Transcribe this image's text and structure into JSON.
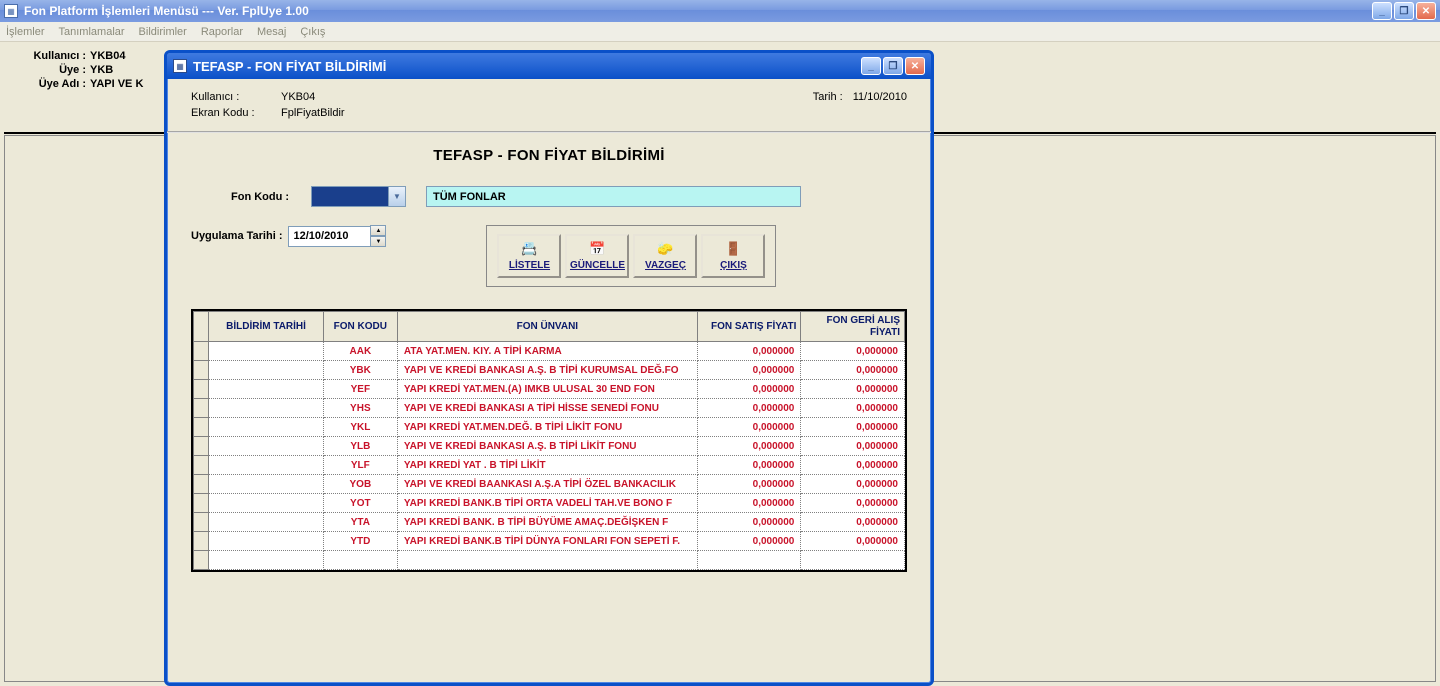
{
  "outer": {
    "title": "Fon Platform İşlemleri Menüsü  ---  Ver.  FplUye 1.00",
    "menu": [
      "İşlemler",
      "Tanımlamalar",
      "Bildirimler",
      "Raporlar",
      "Mesaj",
      "Çıkış"
    ],
    "info": {
      "user_lbl": "Kullanıcı :",
      "user_val": "YKB04",
      "member_lbl": "Üye :",
      "member_val": "YKB",
      "membername_lbl": "Üye Adı :",
      "membername_val": "YAPI VE K"
    }
  },
  "modal": {
    "title": "TEFASP - FON FİYAT BİLDİRİMİ",
    "header": {
      "user_lbl": "Kullanıcı :",
      "user_val": "YKB04",
      "screen_lbl": "Ekran Kodu :",
      "screen_val": "FplFiyatBildir",
      "date_lbl": "Tarih :",
      "date_val": "11/10/2010"
    },
    "section_title": "TEFASP - FON FİYAT BİLDİRİMİ",
    "fonkodu_lbl": "Fon Kodu :",
    "fonkodu_desc": "TÜM FONLAR",
    "uyg_lbl": "Uygulama Tarihi :",
    "uyg_val": "12/10/2010",
    "buttons": {
      "listele": "LİSTELE",
      "guncelle": "GÜNCELLE",
      "vazgec": "VAZGEÇ",
      "cikis": "ÇIKIŞ"
    },
    "table": {
      "headers": {
        "date": "BİLDİRİM TARİHİ",
        "code": "FON KODU",
        "name": "FON ÜNVANI",
        "p1": "FON SATIŞ FİYATI",
        "p2": "FON GERİ ALIŞ FİYATI"
      },
      "rows": [
        {
          "code": "AAK",
          "name": "ATA YAT.MEN. KIY. A TİPİ KARMA",
          "p1": "0,000000",
          "p2": "0,000000"
        },
        {
          "code": "YBK",
          "name": "YAPI VE KREDİ BANKASI A.Ş. B TİPİ KURUMSAL DEĞ.FO",
          "p1": "0,000000",
          "p2": "0,000000"
        },
        {
          "code": "YEF",
          "name": "YAPI KREDİ YAT.MEN.(A) IMKB ULUSAL 30 END FON",
          "p1": "0,000000",
          "p2": "0,000000"
        },
        {
          "code": "YHS",
          "name": "YAPI VE KREDİ BANKASI A TİPİ HİSSE SENEDİ FONU",
          "p1": "0,000000",
          "p2": "0,000000"
        },
        {
          "code": "YKL",
          "name": "YAPI KREDİ YAT.MEN.DEĞ. B TİPİ LİKİT FONU",
          "p1": "0,000000",
          "p2": "0,000000"
        },
        {
          "code": "YLB",
          "name": "YAPI VE KREDİ BANKASI A.Ş. B TİPİ LİKİT FONU",
          "p1": "0,000000",
          "p2": "0,000000"
        },
        {
          "code": "YLF",
          "name": "YAPI KREDİ YAT . B TİPİ LİKİT",
          "p1": "0,000000",
          "p2": "0,000000"
        },
        {
          "code": "YOB",
          "name": "YAPI VE KREDİ BAANKASI A.Ş.A TİPİ ÖZEL BANKACILIK",
          "p1": "0,000000",
          "p2": "0,000000"
        },
        {
          "code": "YOT",
          "name": "YAPI  KREDİ BANK.B TİPİ ORTA VADELİ TAH.VE BONO F",
          "p1": "0,000000",
          "p2": "0,000000"
        },
        {
          "code": "YTA",
          "name": "YAPI  KREDİ BANK. B TİPİ  BÜYÜME AMAÇ.DEĞİŞKEN F",
          "p1": "0,000000",
          "p2": "0,000000"
        },
        {
          "code": "YTD",
          "name": "YAPI KREDİ BANK.B TİPİ DÜNYA FONLARI FON SEPETİ F.",
          "p1": "0,000000",
          "p2": "0,000000"
        }
      ]
    }
  }
}
